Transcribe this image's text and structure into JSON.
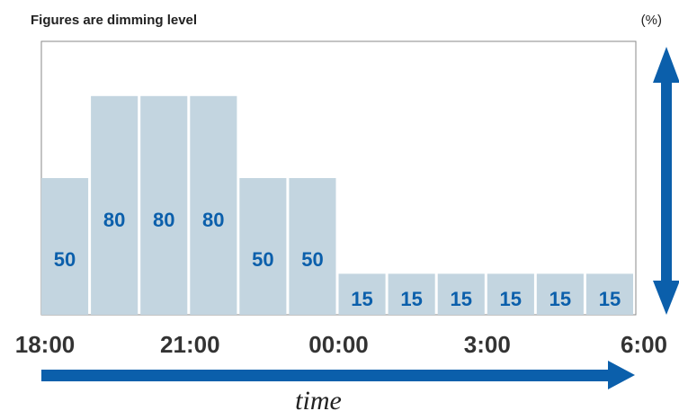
{
  "chart_data": {
    "type": "bar",
    "title": "Figures are dimming level",
    "unit_label": "(%)",
    "xlabel": "time",
    "ylabel": "",
    "ylim": [
      0,
      100
    ],
    "x_tick_labels": [
      "18:00",
      "21:00",
      "00:00",
      "3:00",
      "6:00"
    ],
    "values": [
      50,
      80,
      80,
      80,
      50,
      50,
      15,
      15,
      15,
      15,
      15,
      15
    ],
    "grid": false,
    "legend": "none"
  },
  "colors": {
    "bar_fill": "#c3d5e0",
    "label_color": "#0b5fab",
    "arrow_color": "#0b5fab",
    "frame_color": "#8a8a8a",
    "tick_color": "#333333"
  }
}
